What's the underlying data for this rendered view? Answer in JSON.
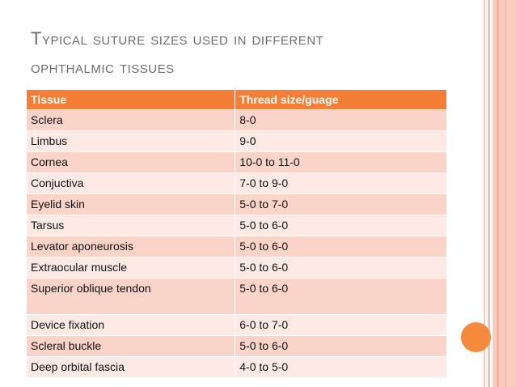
{
  "slide": {
    "title_line1": "Typical suture sizes used in different",
    "title_line2": "ophthalmic tissues"
  },
  "table": {
    "headers": [
      "Tissue",
      "Thread size/guage"
    ],
    "rows": [
      [
        "Sclera",
        "8-0"
      ],
      [
        "Limbus",
        "9-0"
      ],
      [
        "Cornea",
        "10-0 to 11-0"
      ],
      [
        "Conjuctiva",
        "7-0 to 9-0"
      ],
      [
        "Eyelid skin",
        "5-0 to 7-0"
      ],
      [
        "Tarsus",
        "5-0 to 6-0"
      ],
      [
        "Levator aponeurosis",
        "5-0 to 6-0"
      ],
      [
        "Extraocular muscle",
        "5-0 to 6-0"
      ],
      [
        "Superior oblique tendon",
        "5-0 to 6-0"
      ],
      [
        "Device fixation",
        "6-0 to 7-0"
      ],
      [
        "Scleral buckle",
        "5-0 to 6-0"
      ],
      [
        "Deep orbital fascia",
        "4-0 to 5-0"
      ]
    ]
  },
  "colors": {
    "header": "#f47e35",
    "row_odd": "#fbd4c9",
    "row_even": "#fdeae5",
    "accent_circle": "#f58a3d"
  }
}
